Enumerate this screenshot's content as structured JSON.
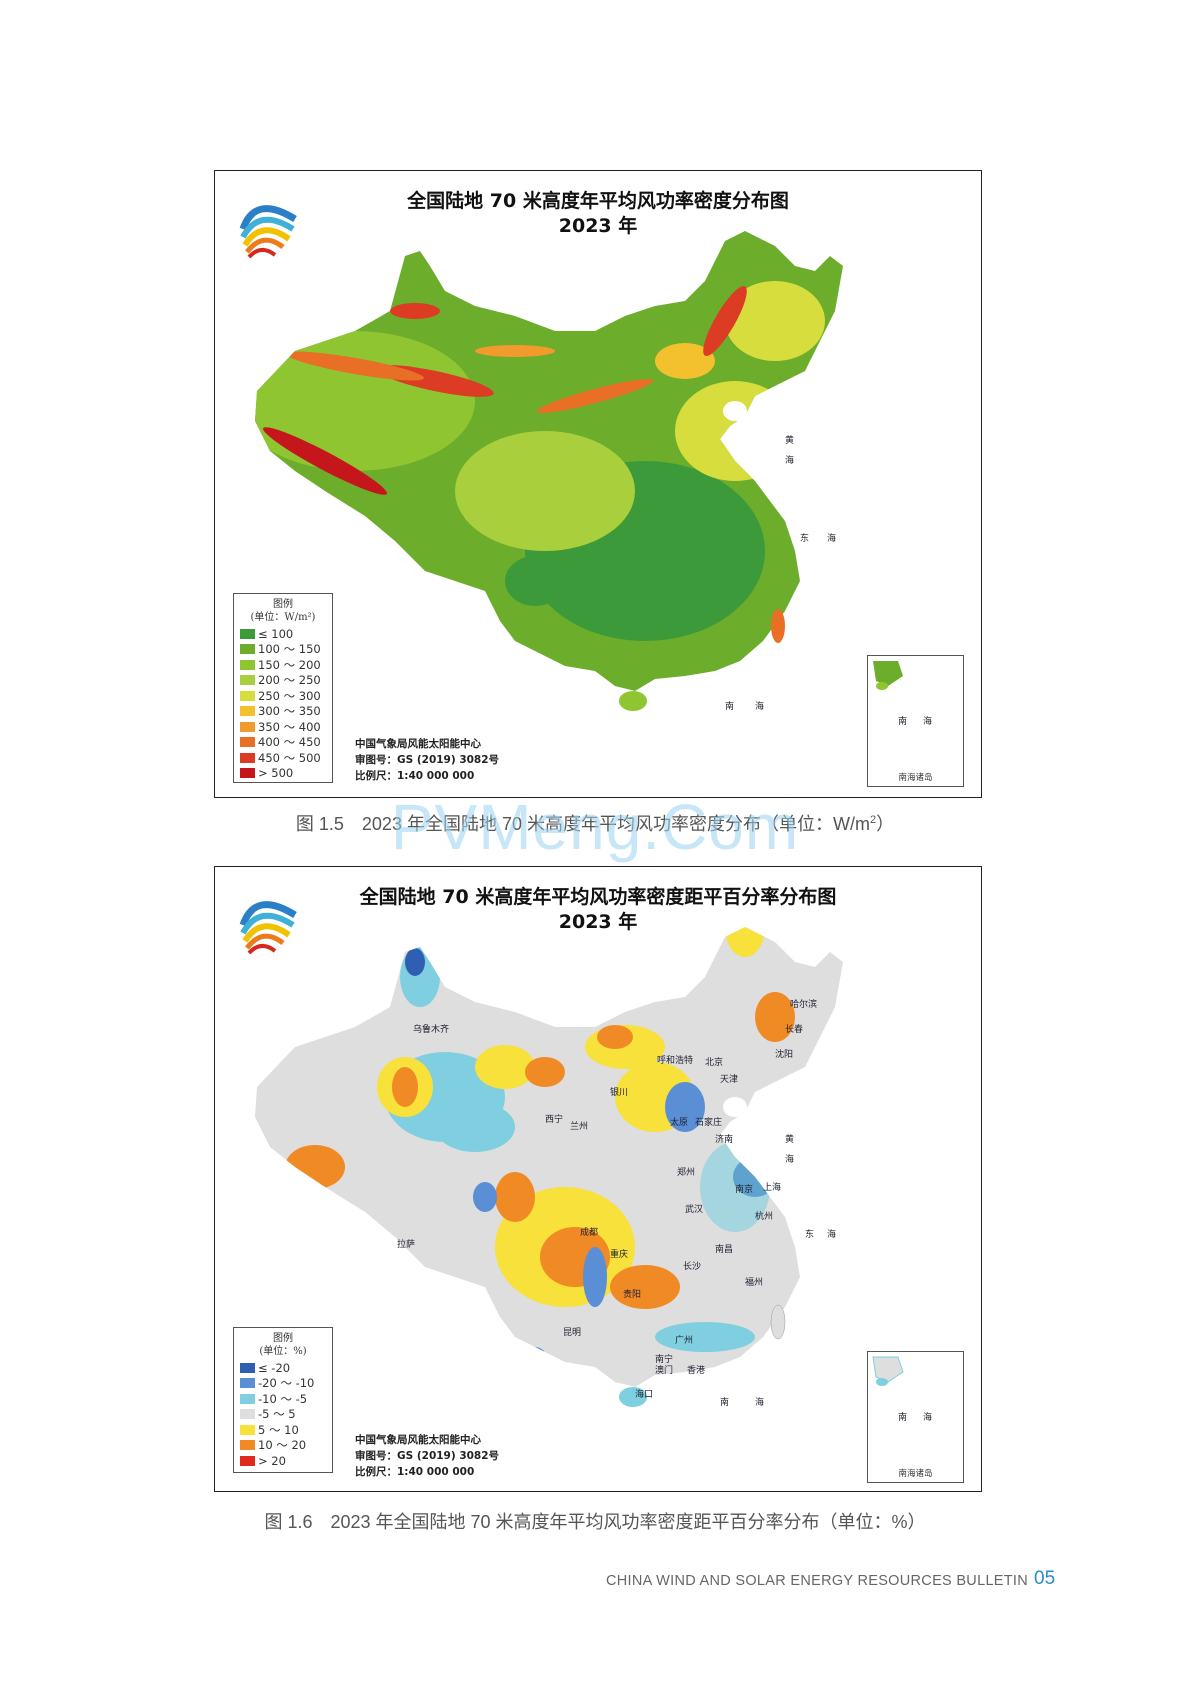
{
  "map1": {
    "title_line1": "全国陆地 70 米高度年平均风功率密度分布图",
    "title_line2": "2023 年",
    "legend": {
      "title": "图例",
      "unit": "(单位：W/m²)",
      "items": [
        {
          "label": "≤ 100",
          "color": "#3d9a3a"
        },
        {
          "label": "100 ～ 150",
          "color": "#6cad2c"
        },
        {
          "label": "150 ～ 200",
          "color": "#8ec530"
        },
        {
          "label": "200 ～ 250",
          "color": "#a9cf3c"
        },
        {
          "label": "250 ～ 300",
          "color": "#d8dd3e"
        },
        {
          "label": "300 ～ 350",
          "color": "#f3c12e"
        },
        {
          "label": "350 ～ 400",
          "color": "#f19a2d"
        },
        {
          "label": "400 ～ 450",
          "color": "#e96f27"
        },
        {
          "label": "450 ～ 500",
          "color": "#dc3b24"
        },
        {
          "label": "> 500",
          "color": "#c5161c"
        }
      ]
    },
    "credits": {
      "line1": "中国气象局风能太阳能中心",
      "line2": "审图号：GS (2019) 3082号",
      "line3": "比例尺：1:40 000 000"
    },
    "inset_label": "南海诸岛"
  },
  "caption1": {
    "text": "图 1.5　2023 年全国陆地 70 米高度年平均风功率密度分布（单位：W/m",
    "sup": "2",
    "close": "）"
  },
  "map2": {
    "title_line1": "全国陆地 70 米高度年平均风功率密度距平百分率分布图",
    "title_line2": "2023 年",
    "legend": {
      "title": "图例",
      "unit": "(单位：%)",
      "items": [
        {
          "label": "≤ -20",
          "color": "#2f5fb3"
        },
        {
          "label": "-20 ～ -10",
          "color": "#5a8fd6"
        },
        {
          "label": "-10 ～ -5",
          "color": "#7fcfe0"
        },
        {
          "label": "-5 ～ 5",
          "color": "#dedede"
        },
        {
          "label": "5 ～ 10",
          "color": "#f7e13a"
        },
        {
          "label": "10 ～ 20",
          "color": "#f08a24"
        },
        {
          "label": "> 20",
          "color": "#e02a1e"
        }
      ]
    },
    "credits": {
      "line1": "中国气象局风能太阳能中心",
      "line2": "审图号：GS (2019) 3082号",
      "line3": "比例尺：1:40 000 000"
    },
    "inset_label": "南海诸岛",
    "cities": [
      "乌鲁木齐",
      "哈尔滨",
      "长春",
      "沈阳",
      "呼和浩特",
      "北京",
      "天津",
      "银川",
      "太原",
      "石家庄",
      "济南",
      "西宁",
      "兰州",
      "郑州",
      "南京",
      "上海",
      "杭州",
      "成都",
      "重庆",
      "武汉",
      "长沙",
      "南昌",
      "福州",
      "贵阳",
      "昆明",
      "南宁",
      "广州",
      "澳门",
      "香港",
      "海口",
      "拉萨"
    ]
  },
  "caption2": {
    "text": "图 1.6　2023 年全国陆地 70 米高度年平均风功率密度距平百分率分布（单位：%）"
  },
  "watermark": "PVMeng.Com",
  "footer": {
    "text": "CHINA WIND AND SOLAR ENERGY RESOURCES BULLETIN",
    "page": "05"
  }
}
